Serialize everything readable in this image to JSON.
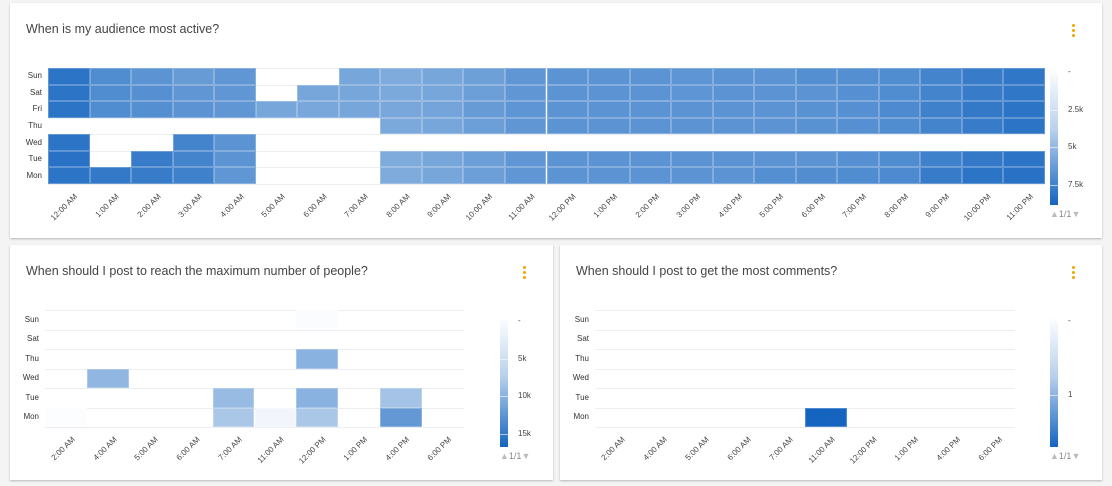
{
  "colors": {
    "low": "#ffffff",
    "high": "#1565c0",
    "menu": "#f0a500"
  },
  "chart_data": [
    {
      "type": "heatmap",
      "title": "When is my audience most active?",
      "rows": [
        "Sun",
        "Sat",
        "Fri",
        "Thu",
        "Wed",
        "Tue",
        "Mon"
      ],
      "columns": [
        "12:00 AM",
        "1:00 AM",
        "2:00 AM",
        "3:00 AM",
        "4:00 AM",
        "5:00 AM",
        "6:00 AM",
        "7:00 AM",
        "8:00 AM",
        "9:00 AM",
        "10:00 AM",
        "11:00 AM",
        "12:00 PM",
        "1:00 PM",
        "2:00 PM",
        "3:00 PM",
        "4:00 PM",
        "5:00 PM",
        "6:00 PM",
        "7:00 PM",
        "8:00 PM",
        "9:00 PM",
        "10:00 PM",
        "11:00 PM"
      ],
      "values": [
        [
          9000,
          7500,
          7000,
          6500,
          6800,
          null,
          null,
          5800,
          5500,
          5800,
          6200,
          6800,
          7000,
          7000,
          7000,
          6900,
          7000,
          7000,
          7300,
          7300,
          7500,
          8000,
          8500,
          8800
        ],
        [
          9000,
          7500,
          7200,
          6800,
          6800,
          null,
          5800,
          5800,
          5600,
          5800,
          6300,
          6800,
          7000,
          7000,
          7000,
          6900,
          7000,
          7000,
          7000,
          7200,
          7500,
          8000,
          8500,
          8800
        ],
        [
          9000,
          7500,
          7300,
          7000,
          6800,
          5800,
          5700,
          5800,
          5700,
          5900,
          6500,
          6900,
          7000,
          7000,
          7000,
          7000,
          7000,
          7000,
          7100,
          7200,
          7600,
          8200,
          8700,
          9000
        ],
        [
          null,
          null,
          null,
          null,
          null,
          null,
          null,
          null,
          5600,
          5800,
          6300,
          6800,
          7000,
          7000,
          7000,
          7000,
          7000,
          7000,
          7100,
          7200,
          7500,
          8000,
          8500,
          9000
        ],
        [
          9000,
          null,
          null,
          8000,
          7000,
          null,
          null,
          null,
          null,
          null,
          null,
          null,
          null,
          null,
          null,
          null,
          null,
          null,
          null,
          null,
          null,
          null,
          null,
          null
        ],
        [
          9200,
          null,
          8500,
          8000,
          7000,
          null,
          null,
          null,
          5500,
          5800,
          6300,
          6800,
          7000,
          7000,
          7000,
          7000,
          7000,
          7000,
          7000,
          7200,
          7500,
          8200,
          8700,
          9000
        ],
        [
          9000,
          8700,
          8500,
          8200,
          6800,
          null,
          null,
          null,
          5500,
          5800,
          6300,
          6800,
          7000,
          7000,
          7000,
          7000,
          7000,
          7300,
          7400,
          7500,
          7600,
          8500,
          9000,
          9200
        ]
      ],
      "color_range": [
        0,
        10000
      ],
      "legend_ticks": [
        "-",
        "2.5k",
        "5k",
        "7.5k"
      ],
      "pager": "1/1"
    },
    {
      "type": "heatmap",
      "title": "When should I post to reach the maximum number of people?",
      "rows": [
        "Sun",
        "Sat",
        "Thu",
        "Wed",
        "Tue",
        "Mon"
      ],
      "columns": [
        "2:00 AM",
        "4:00 AM",
        "5:00 AM",
        "6:00 AM",
        "7:00 AM",
        "11:00 AM",
        "12:00 PM",
        "1:00 PM",
        "4:00 PM",
        "6:00 PM"
      ],
      "values": [
        [
          null,
          null,
          null,
          null,
          null,
          null,
          300,
          null,
          null,
          null
        ],
        [
          null,
          null,
          null,
          null,
          null,
          null,
          null,
          null,
          null,
          null
        ],
        [
          null,
          null,
          null,
          null,
          null,
          null,
          9000,
          null,
          null,
          null
        ],
        [
          null,
          8500,
          null,
          null,
          null,
          null,
          null,
          null,
          null,
          null
        ],
        [
          null,
          null,
          null,
          null,
          8000,
          null,
          9000,
          null,
          7000,
          null
        ],
        [
          200,
          null,
          null,
          null,
          6500,
          1000,
          6500,
          null,
          12000,
          null
        ]
      ],
      "color_range": [
        0,
        18000
      ],
      "legend_ticks": [
        "-",
        "5k",
        "10k",
        "15k"
      ],
      "pager": "1/1"
    },
    {
      "type": "heatmap",
      "title": "When should I post to get the most comments?",
      "rows": [
        "Sun",
        "Sat",
        "Thu",
        "Wed",
        "Tue",
        "Mon"
      ],
      "columns": [
        "2:00 AM",
        "4:00 AM",
        "5:00 AM",
        "6:00 AM",
        "7:00 AM",
        "11:00 AM",
        "12:00 PM",
        "1:00 PM",
        "4:00 PM",
        "6:00 PM"
      ],
      "values": [
        [
          null,
          null,
          null,
          null,
          null,
          null,
          null,
          null,
          null,
          null
        ],
        [
          null,
          null,
          null,
          null,
          null,
          null,
          null,
          null,
          null,
          null
        ],
        [
          null,
          null,
          null,
          null,
          null,
          null,
          null,
          null,
          null,
          null
        ],
        [
          null,
          null,
          null,
          null,
          null,
          null,
          null,
          null,
          null,
          null
        ],
        [
          null,
          null,
          null,
          null,
          null,
          null,
          null,
          null,
          null,
          null
        ],
        [
          null,
          null,
          null,
          null,
          null,
          2,
          null,
          null,
          null,
          null
        ]
      ],
      "color_range": [
        0,
        2
      ],
      "legend_ticks": [
        "-",
        "1"
      ],
      "pager": "1/1"
    }
  ]
}
